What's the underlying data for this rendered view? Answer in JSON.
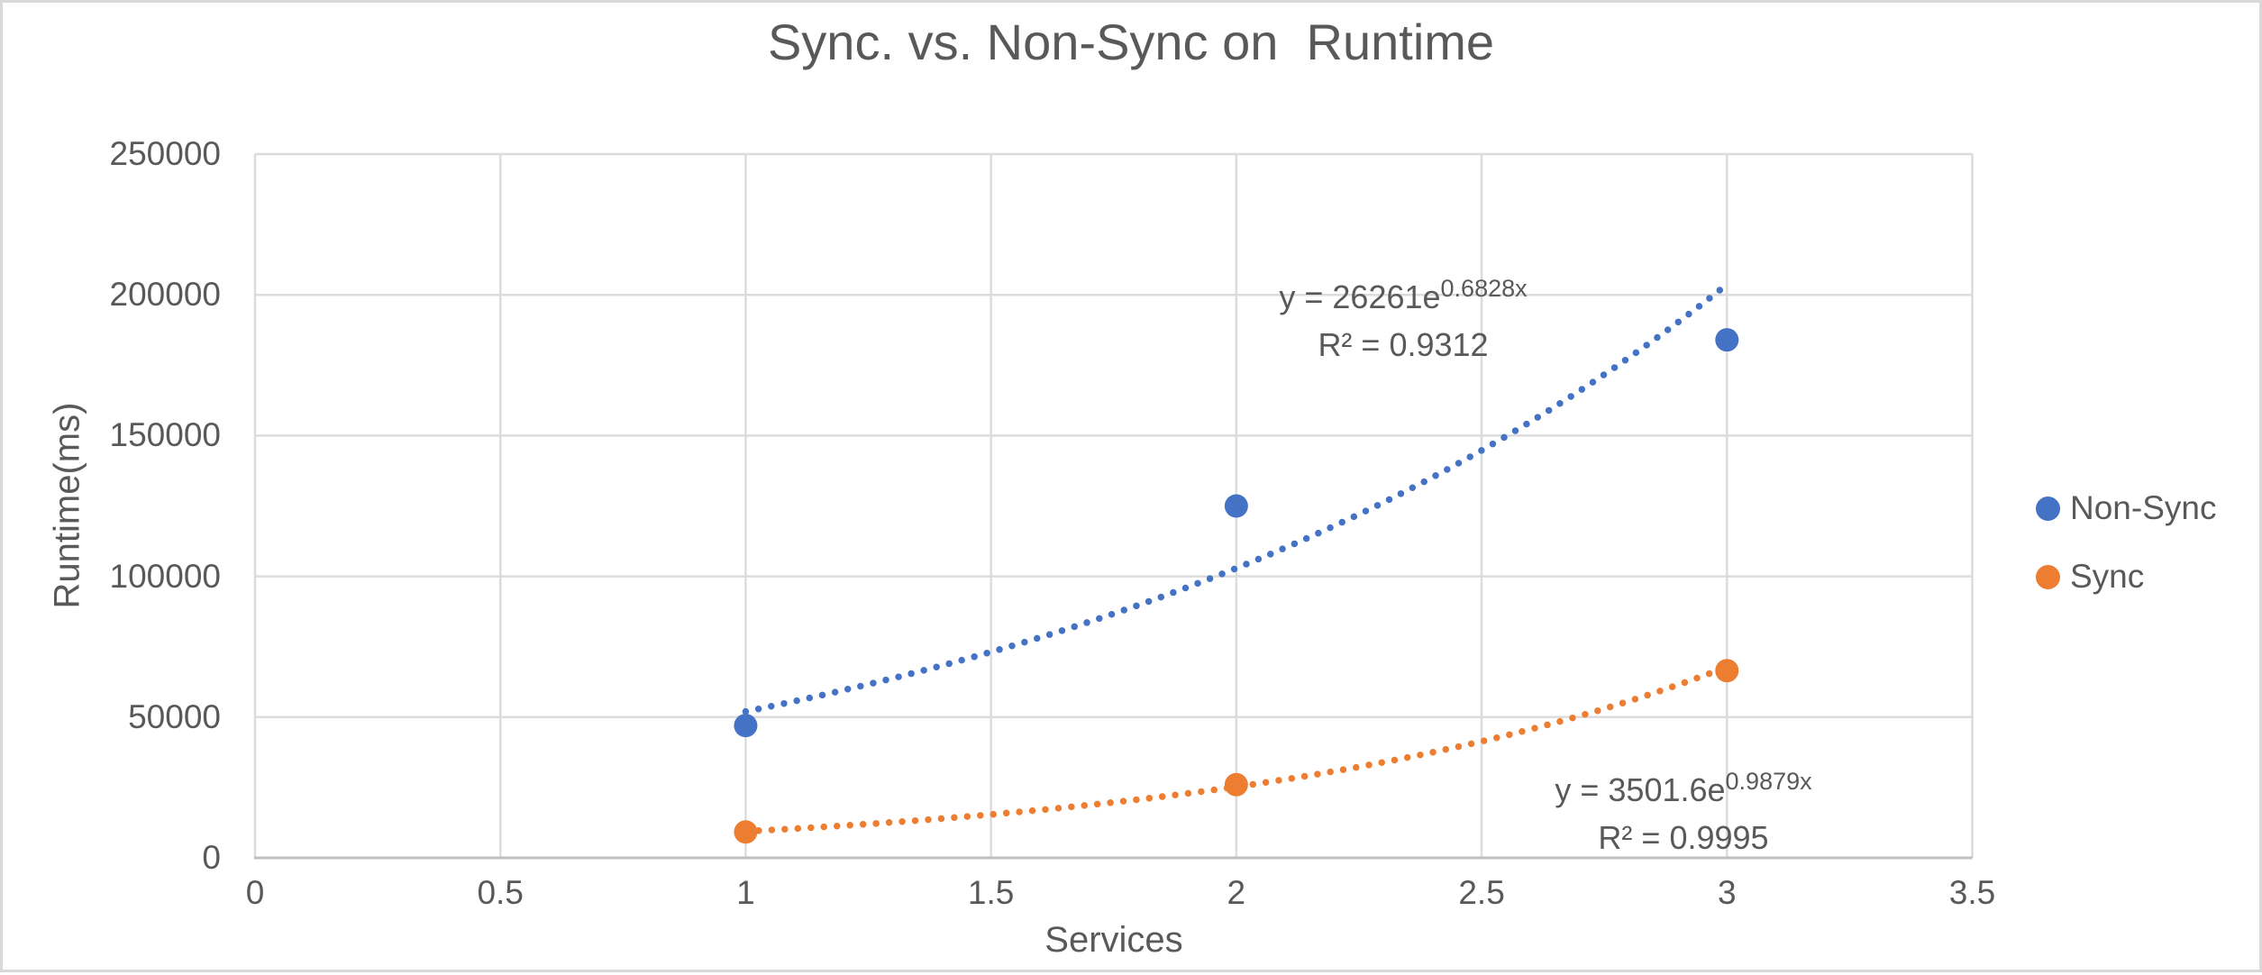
{
  "chart_data": {
    "type": "scatter",
    "title": "Sync. vs. Non-Sync on  Runtime",
    "xlabel": "Services",
    "ylabel": "Runtime(ms)",
    "xlim": [
      0,
      3.5
    ],
    "ylim": [
      0,
      250000
    ],
    "xticks": [
      0,
      0.5,
      1,
      1.5,
      2,
      2.5,
      3,
      3.5
    ],
    "yticks": [
      0,
      50000,
      100000,
      150000,
      200000,
      250000
    ],
    "grid": true,
    "legend_position": "right",
    "x": [
      1,
      2,
      3
    ],
    "series": [
      {
        "name": "Non-Sync",
        "color": "#4472C4",
        "values": [
          47000,
          125000,
          184000
        ],
        "trendline": {
          "type": "exponential",
          "a": 26261,
          "b": 0.6828,
          "x_range": [
            1,
            3
          ],
          "equation_base": "y = 26261e",
          "equation_exponent": "0.6828x",
          "r_squared": "R² = 0.9312"
        }
      },
      {
        "name": "Sync",
        "color": "#ED7D31",
        "values": [
          9200,
          26000,
          66500
        ],
        "trendline": {
          "type": "exponential",
          "a": 3501.6,
          "b": 0.9879,
          "x_range": [
            1,
            3
          ],
          "equation_base": "y = 3501.6e",
          "equation_exponent": "0.9879x",
          "r_squared": "R² = 0.9995"
        }
      }
    ]
  },
  "colors": {
    "text": "#595959",
    "gridline": "#DCDCDC",
    "axis_line": "#BFBFBF",
    "frame_border": "#D9D9D9",
    "background": "#FFFFFF"
  }
}
